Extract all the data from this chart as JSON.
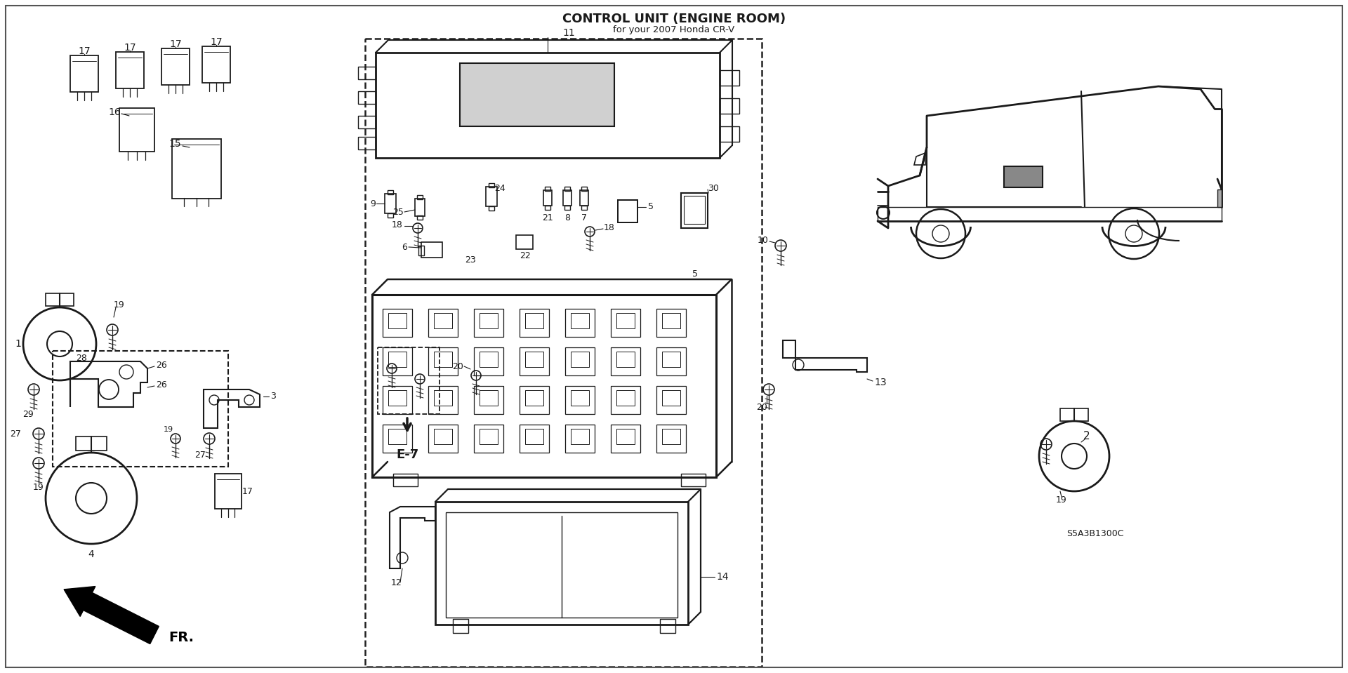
{
  "title": "CONTROL UNIT (ENGINE ROOM)",
  "subtitle": "for your 2007 Honda CR-V",
  "bg": "#ffffff",
  "lc": "#1a1a1a",
  "diagram_code": "S5A3B1300C",
  "ref_code": "E-7",
  "fig_width": 19.2,
  "fig_height": 9.59,
  "dpi": 100
}
